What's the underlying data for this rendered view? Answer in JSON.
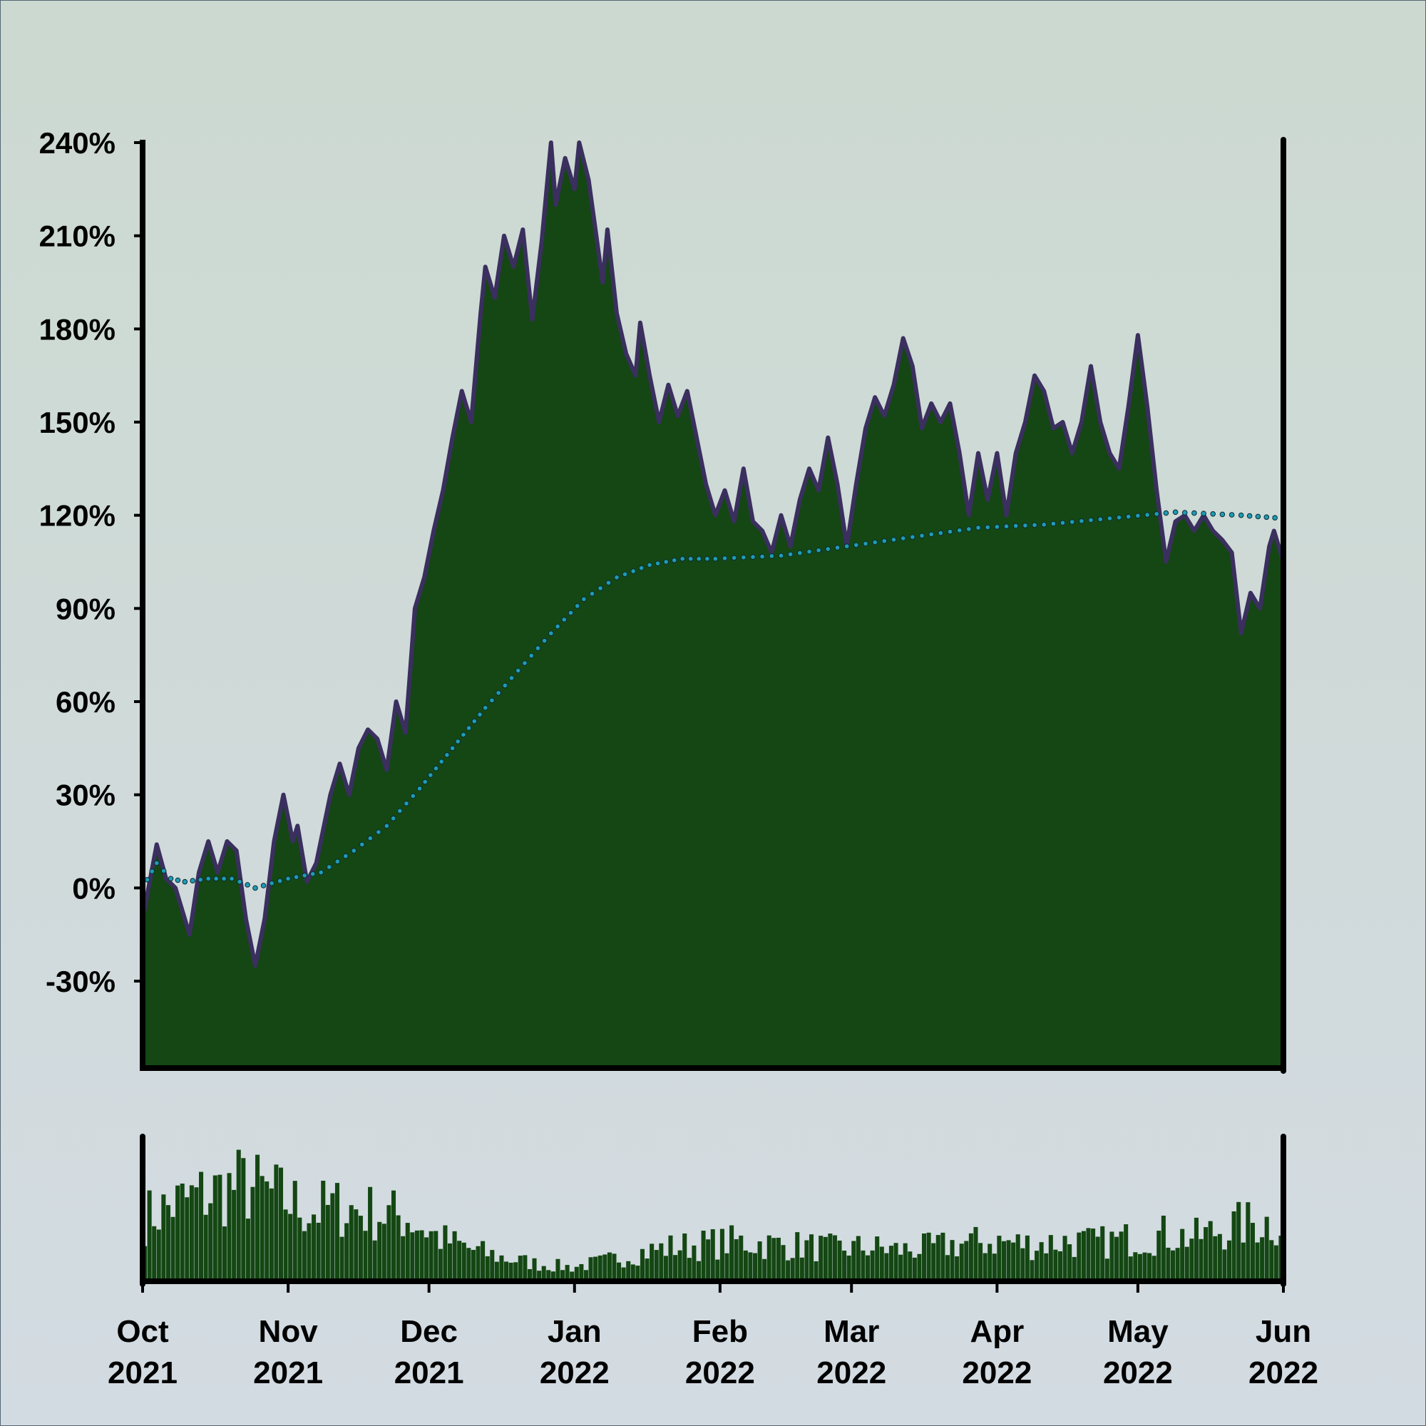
{
  "colors": {
    "area_fill": "#144713",
    "area_outline": "#3a2f5e",
    "smooth_line": "#1f9bb5",
    "volume_fill": "#144713",
    "axis": "#000000"
  },
  "chart_data": [
    {
      "type": "area",
      "subtype": "cumulative-return",
      "title": "",
      "xlabel": "",
      "ylabel": "",
      "y_unit": "%",
      "ylim": [
        -58,
        240
      ],
      "y_ticks": [
        -30,
        0,
        30,
        60,
        90,
        120,
        150,
        180,
        210,
        240
      ],
      "y_tick_labels": [
        "-30%",
        "0%",
        "30%",
        "60%",
        "90%",
        "120%",
        "150%",
        "180%",
        "210%",
        "240%"
      ],
      "x_range": [
        "2021-10-01",
        "2022-06-01"
      ],
      "x_ticks": [
        "2021-10-01",
        "2021-11-01",
        "2021-12-01",
        "2022-01-01",
        "2022-02-01",
        "2022-03-01",
        "2022-04-01",
        "2022-05-01",
        "2022-06-01"
      ],
      "x_tick_labels": [
        [
          "Oct",
          "2021"
        ],
        [
          "Nov",
          "2021"
        ],
        [
          "Dec",
          "2021"
        ],
        [
          "Jan",
          "2022"
        ],
        [
          "Feb",
          "2022"
        ],
        [
          "Mar",
          "2022"
        ],
        [
          "Apr",
          "2022"
        ],
        [
          "May",
          "2022"
        ],
        [
          "Jun",
          "2022"
        ]
      ],
      "grid": false,
      "legend": "none",
      "series": [
        {
          "style": "filled-area",
          "points": [
            [
              "2021-10-01",
              -10
            ],
            [
              "2021-10-04",
              14
            ],
            [
              "2021-10-06",
              3
            ],
            [
              "2021-10-08",
              0
            ],
            [
              "2021-10-11",
              -15
            ],
            [
              "2021-10-13",
              5
            ],
            [
              "2021-10-15",
              15
            ],
            [
              "2021-10-17",
              5
            ],
            [
              "2021-10-19",
              15
            ],
            [
              "2021-10-21",
              12
            ],
            [
              "2021-10-23",
              -10
            ],
            [
              "2021-10-25",
              -25
            ],
            [
              "2021-10-27",
              -10
            ],
            [
              "2021-10-29",
              15
            ],
            [
              "2021-10-31",
              30
            ],
            [
              "2021-11-02",
              15
            ],
            [
              "2021-11-03",
              20
            ],
            [
              "2021-11-05",
              2
            ],
            [
              "2021-11-07",
              8
            ],
            [
              "2021-11-10",
              30
            ],
            [
              "2021-11-12",
              40
            ],
            [
              "2021-11-14",
              30
            ],
            [
              "2021-11-16",
              45
            ],
            [
              "2021-11-18",
              51
            ],
            [
              "2021-11-20",
              48
            ],
            [
              "2021-11-22",
              38
            ],
            [
              "2021-11-24",
              60
            ],
            [
              "2021-11-26",
              50
            ],
            [
              "2021-11-28",
              90
            ],
            [
              "2021-11-30",
              100
            ],
            [
              "2021-12-02",
              115
            ],
            [
              "2021-12-04",
              128
            ],
            [
              "2021-12-06",
              145
            ],
            [
              "2021-12-08",
              160
            ],
            [
              "2021-12-10",
              150
            ],
            [
              "2021-12-12",
              185
            ],
            [
              "2021-12-13",
              200
            ],
            [
              "2021-12-15",
              190
            ],
            [
              "2021-12-17",
              210
            ],
            [
              "2021-12-19",
              200
            ],
            [
              "2021-12-21",
              212
            ],
            [
              "2021-12-23",
              183
            ],
            [
              "2021-12-25",
              208
            ],
            [
              "2021-12-27",
              240
            ],
            [
              "2021-12-28",
              220
            ],
            [
              "2021-12-30",
              235
            ],
            [
              "2022-01-01",
              225
            ],
            [
              "2022-01-02",
              240
            ],
            [
              "2022-01-04",
              228
            ],
            [
              "2022-01-07",
              195
            ],
            [
              "2022-01-08",
              212
            ],
            [
              "2022-01-10",
              185
            ],
            [
              "2022-01-12",
              172
            ],
            [
              "2022-01-14",
              165
            ],
            [
              "2022-01-15",
              182
            ],
            [
              "2022-01-17",
              165
            ],
            [
              "2022-01-19",
              150
            ],
            [
              "2022-01-21",
              162
            ],
            [
              "2022-01-23",
              152
            ],
            [
              "2022-01-25",
              160
            ],
            [
              "2022-01-27",
              145
            ],
            [
              "2022-01-29",
              130
            ],
            [
              "2022-01-31",
              120
            ],
            [
              "2022-02-02",
              128
            ],
            [
              "2022-02-04",
              118
            ],
            [
              "2022-02-06",
              135
            ],
            [
              "2022-02-08",
              118
            ],
            [
              "2022-02-10",
              115
            ],
            [
              "2022-02-12",
              108
            ],
            [
              "2022-02-14",
              120
            ],
            [
              "2022-02-16",
              110
            ],
            [
              "2022-02-18",
              125
            ],
            [
              "2022-02-20",
              135
            ],
            [
              "2022-02-22",
              128
            ],
            [
              "2022-02-24",
              145
            ],
            [
              "2022-02-26",
              130
            ],
            [
              "2022-02-28",
              110
            ],
            [
              "2022-03-02",
              130
            ],
            [
              "2022-03-04",
              148
            ],
            [
              "2022-03-06",
              158
            ],
            [
              "2022-03-08",
              152
            ],
            [
              "2022-03-10",
              162
            ],
            [
              "2022-03-12",
              177
            ],
            [
              "2022-03-14",
              168
            ],
            [
              "2022-03-16",
              148
            ],
            [
              "2022-03-18",
              156
            ],
            [
              "2022-03-20",
              150
            ],
            [
              "2022-03-22",
              156
            ],
            [
              "2022-03-24",
              140
            ],
            [
              "2022-03-26",
              120
            ],
            [
              "2022-03-28",
              140
            ],
            [
              "2022-03-30",
              125
            ],
            [
              "2022-04-01",
              140
            ],
            [
              "2022-04-03",
              120
            ],
            [
              "2022-04-05",
              140
            ],
            [
              "2022-04-07",
              150
            ],
            [
              "2022-04-09",
              165
            ],
            [
              "2022-04-11",
              160
            ],
            [
              "2022-04-13",
              148
            ],
            [
              "2022-04-15",
              150
            ],
            [
              "2022-04-17",
              140
            ],
            [
              "2022-04-19",
              150
            ],
            [
              "2022-04-21",
              168
            ],
            [
              "2022-04-23",
              150
            ],
            [
              "2022-04-25",
              140
            ],
            [
              "2022-04-27",
              135
            ],
            [
              "2022-04-29",
              155
            ],
            [
              "2022-05-01",
              178
            ],
            [
              "2022-05-03",
              155
            ],
            [
              "2022-05-05",
              128
            ],
            [
              "2022-05-07",
              105
            ],
            [
              "2022-05-09",
              118
            ],
            [
              "2022-05-11",
              120
            ],
            [
              "2022-05-13",
              115
            ],
            [
              "2022-05-15",
              120
            ],
            [
              "2022-05-17",
              115
            ],
            [
              "2022-05-19",
              112
            ],
            [
              "2022-05-21",
              108
            ],
            [
              "2022-05-23",
              82
            ],
            [
              "2022-05-25",
              95
            ],
            [
              "2022-05-27",
              90
            ],
            [
              "2022-05-29",
              110
            ],
            [
              "2022-05-30",
              115
            ],
            [
              "2022-06-01",
              105
            ]
          ]
        },
        {
          "style": "dotted-smoothed-line",
          "points": [
            [
              "2021-10-01",
              0
            ],
            [
              "2021-10-04",
              8
            ],
            [
              "2021-10-07",
              3
            ],
            [
              "2021-10-10",
              2
            ],
            [
              "2021-10-15",
              3
            ],
            [
              "2021-10-20",
              3
            ],
            [
              "2021-10-25",
              0
            ],
            [
              "2021-11-01",
              3
            ],
            [
              "2021-11-08",
              5
            ],
            [
              "2021-11-15",
              12
            ],
            [
              "2021-11-22",
              20
            ],
            [
              "2021-11-29",
              32
            ],
            [
              "2021-12-06",
              45
            ],
            [
              "2021-12-13",
              58
            ],
            [
              "2021-12-20",
              70
            ],
            [
              "2021-12-27",
              82
            ],
            [
              "2022-01-03",
              93
            ],
            [
              "2022-01-10",
              100
            ],
            [
              "2022-01-17",
              104
            ],
            [
              "2022-01-24",
              106
            ],
            [
              "2022-01-31",
              106
            ],
            [
              "2022-02-14",
              107
            ],
            [
              "2022-02-28",
              110
            ],
            [
              "2022-03-14",
              113
            ],
            [
              "2022-03-28",
              116
            ],
            [
              "2022-04-11",
              117
            ],
            [
              "2022-04-25",
              119
            ],
            [
              "2022-05-09",
              121
            ],
            [
              "2022-05-23",
              120
            ],
            [
              "2022-06-01",
              119
            ]
          ]
        }
      ]
    },
    {
      "type": "bar",
      "subtype": "volume",
      "title": "",
      "xlabel": "",
      "ylabel": "",
      "x_range": [
        "2021-10-01",
        "2022-06-01"
      ],
      "y_scale": "relative (no tick labels shown)",
      "ylim": [
        0,
        1
      ],
      "weekly_levels": [
        [
          "2021-10-01",
          0.45
        ],
        [
          "2021-10-08",
          0.55
        ],
        [
          "2021-10-15",
          0.62
        ],
        [
          "2021-10-22",
          0.68
        ],
        [
          "2021-10-29",
          0.6
        ],
        [
          "2021-11-05",
          0.5
        ],
        [
          "2021-11-12",
          0.52
        ],
        [
          "2021-11-19",
          0.48
        ],
        [
          "2021-11-26",
          0.45
        ],
        [
          "2021-12-03",
          0.3
        ],
        [
          "2021-12-10",
          0.22
        ],
        [
          "2021-12-17",
          0.16
        ],
        [
          "2021-12-24",
          0.12
        ],
        [
          "2021-12-31",
          0.1
        ],
        [
          "2022-01-07",
          0.14
        ],
        [
          "2022-01-14",
          0.2
        ],
        [
          "2022-01-21",
          0.24
        ],
        [
          "2022-01-28",
          0.26
        ],
        [
          "2022-02-04",
          0.28
        ],
        [
          "2022-02-11",
          0.26
        ],
        [
          "2022-02-18",
          0.25
        ],
        [
          "2022-02-25",
          0.23
        ],
        [
          "2022-03-04",
          0.24
        ],
        [
          "2022-03-11",
          0.22
        ],
        [
          "2022-03-18",
          0.24
        ],
        [
          "2022-03-25",
          0.27
        ],
        [
          "2022-04-01",
          0.28
        ],
        [
          "2022-04-08",
          0.26
        ],
        [
          "2022-04-15",
          0.28
        ],
        [
          "2022-04-22",
          0.27
        ],
        [
          "2022-04-29",
          0.3
        ],
        [
          "2022-05-06",
          0.33
        ],
        [
          "2022-05-13",
          0.31
        ],
        [
          "2022-05-20",
          0.38
        ],
        [
          "2022-05-27",
          0.42
        ],
        [
          "2022-06-01",
          0.4
        ]
      ]
    }
  ]
}
